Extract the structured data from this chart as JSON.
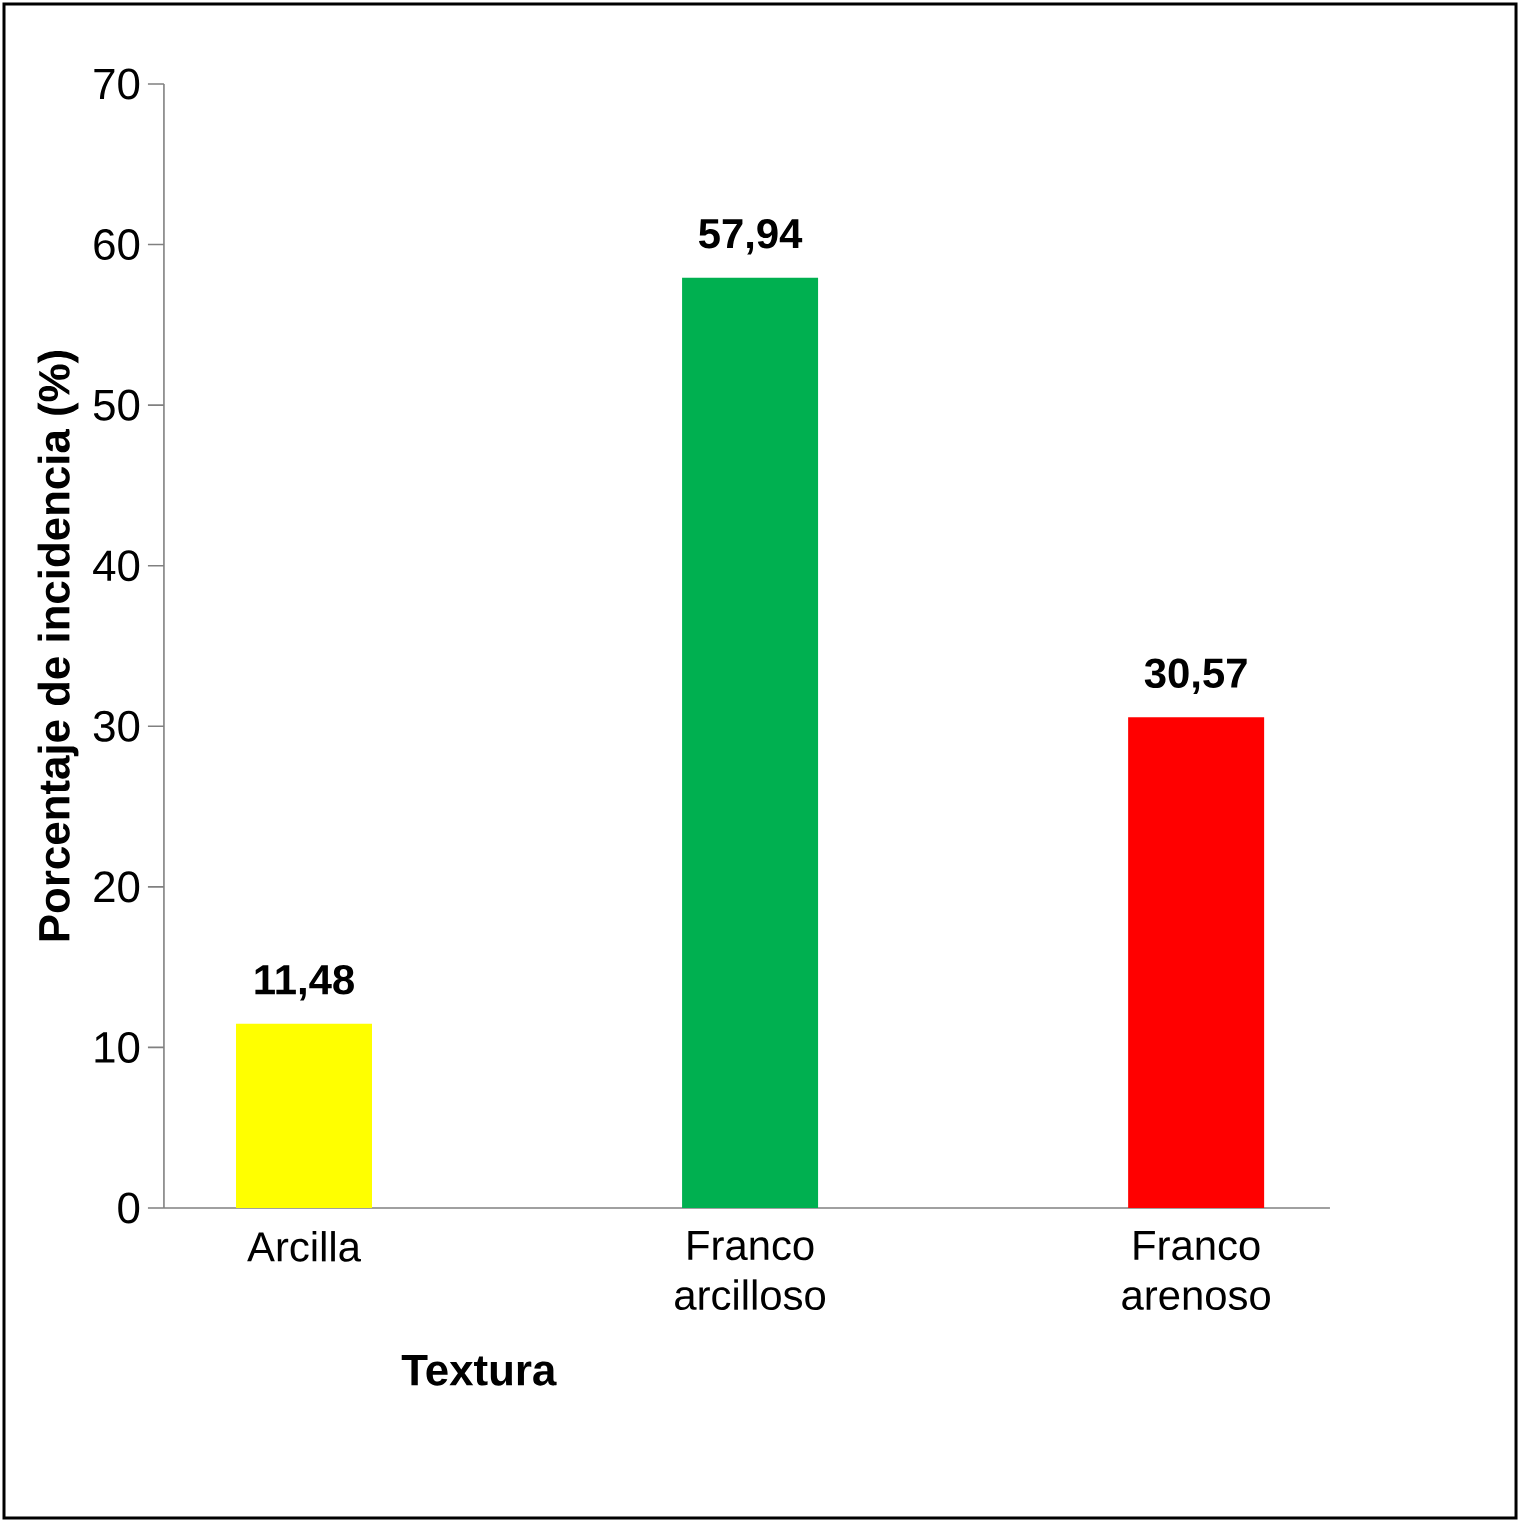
{
  "chart_data": {
    "type": "bar",
    "xlabel": "Textura",
    "ylabel": "Porcentaje de incidencia (%)",
    "categories": [
      "Arcilla",
      "Franco arcilloso",
      "Franco arenoso"
    ],
    "values": [
      11.48,
      57.94,
      30.57
    ],
    "colors": [
      "#ffff00",
      "#00b050",
      "#ff0000"
    ],
    "value_labels": [
      "11,48",
      "57,94",
      "30,57"
    ],
    "ylim": [
      0,
      70
    ],
    "yticks": [
      0,
      10,
      20,
      30,
      40,
      50,
      60,
      70
    ]
  }
}
